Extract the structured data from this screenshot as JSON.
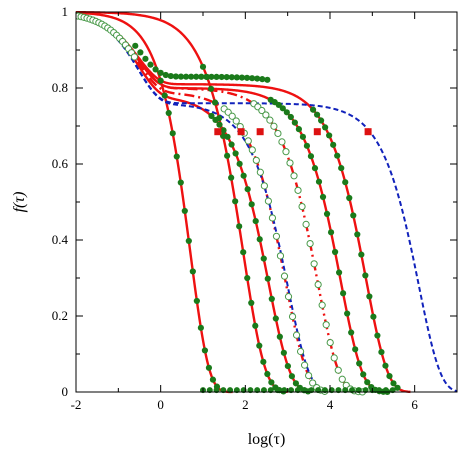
{
  "chart_data": {
    "type": "line",
    "xlabel": "log(τ)",
    "ylabel": "f(τ)",
    "xlim": [
      -2,
      7
    ],
    "ylim": [
      0,
      1
    ],
    "x_ticks": [
      "-2",
      "0",
      "2",
      "4",
      "6"
    ],
    "y_ticks": [
      "0",
      "0.2",
      "0.4",
      "0.6",
      "0.8",
      "1"
    ],
    "grid": false,
    "legend": "none",
    "colors": {
      "fit_line": "#ee1111",
      "dashed_line": "#1122bb",
      "filled_marker": "#1a7a1a",
      "open_marker": "#4a9a4a",
      "red_marker": "#dd1111"
    },
    "series": [
      {
        "kind": "fit",
        "style": "solid",
        "plateau": 0.0,
        "tau": 0.7,
        "beta": 1.0,
        "x_range": [
          -2,
          1.7
        ]
      },
      {
        "kind": "fit",
        "style": "solid",
        "plateau": 0.0,
        "tau": 1.95,
        "beta": 0.85,
        "x_range": [
          -2,
          3.0
        ]
      },
      {
        "kind": "fit",
        "style": "solid",
        "plateau": 0.78,
        "tau": 2.55,
        "beta": 0.85,
        "x_range": [
          -2,
          3.5
        ]
      },
      {
        "kind": "fit",
        "style": "dashdot",
        "plateau": 0.79,
        "tau": 2.95,
        "beta": 0.85,
        "x_range": [
          -2,
          3.9
        ]
      },
      {
        "kind": "fit",
        "style": "dashdot",
        "plateau": 0.8,
        "tau": 3.7,
        "beta": 0.85,
        "x_range": [
          -2,
          4.8
        ]
      },
      {
        "kind": "fit",
        "style": "solid",
        "plateau": 0.8,
        "tau": 4.25,
        "beta": 0.85,
        "x_range": [
          -2,
          5.4
        ]
      },
      {
        "kind": "fit",
        "style": "solid",
        "plateau": 0.81,
        "tau": 4.85,
        "beta": 0.85,
        "x_range": [
          -2,
          5.9
        ]
      },
      {
        "kind": "fit",
        "style": "dashed_blue",
        "plateau": 0.76,
        "tau": 3.0,
        "beta": 0.85,
        "x_range": [
          -2,
          3.9
        ]
      },
      {
        "kind": "fit",
        "style": "dashed_blue",
        "plateau": 0.76,
        "tau": 6.1,
        "beta": 0.85,
        "x_range": [
          -2,
          7.0
        ]
      }
    ],
    "green_data_series": [
      {
        "plateau": 0.0,
        "tau": 0.7,
        "beta": 1.0,
        "marker": "filled",
        "x_from": 0.0,
        "x_to": 1.4
      },
      {
        "plateau": 0.0,
        "tau": 1.95,
        "beta": 0.85,
        "marker": "filled",
        "x_from": 1.0,
        "x_to": 2.9
      },
      {
        "plateau": 0.78,
        "tau": 2.55,
        "beta": 0.85,
        "marker": "filled",
        "x_from": 1.2,
        "x_to": 3.5
      },
      {
        "plateau": 0.79,
        "tau": 2.95,
        "beta": 0.85,
        "marker": "open",
        "x_from": 1.5,
        "x_to": 3.9
      },
      {
        "plateau": 0.8,
        "tau": 3.7,
        "beta": 0.85,
        "marker": "open",
        "x_from": 2.2,
        "x_to": 4.8
      },
      {
        "plateau": 0.8,
        "tau": 4.25,
        "beta": 0.85,
        "marker": "filled",
        "x_from": 2.6,
        "x_to": 5.4
      },
      {
        "plateau": 0.81,
        "tau": 4.85,
        "beta": 0.85,
        "marker": "filled",
        "x_from": 3.6,
        "x_to": 5.6
      }
    ],
    "red_markers": [
      {
        "x": 1.35,
        "y": 0.685
      },
      {
        "x": 2.35,
        "y": 0.685
      },
      {
        "x": 3.7,
        "y": 0.685
      },
      {
        "x": 4.9,
        "y": 0.685
      },
      {
        "x": 1.9,
        "y": 0.685
      }
    ],
    "initial_plateau": {
      "y_start": 1.0,
      "x_start": -1.95,
      "x_end": -0.6
    }
  }
}
